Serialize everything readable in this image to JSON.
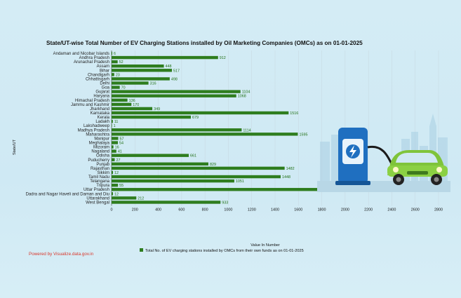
{
  "title": "State/UT-wise Total Number of EV Charging Stations installed by Oil Marketing Companies (OMCs) as on 01-01-2025",
  "powered_by": "Powered by Visualize.data.gov.in",
  "colors": {
    "bar": "#2e7d1e",
    "value_label": "#1f6f12",
    "powered": "#d9372c",
    "grid": "#c6d7df"
  },
  "chart_data": {
    "type": "bar",
    "orientation": "horizontal",
    "xlabel": "Value In Number",
    "ylabel": "State/UT",
    "xlim": [
      0,
      2800
    ],
    "x_ticks": [
      0,
      200,
      400,
      600,
      800,
      1000,
      1200,
      1400,
      1600,
      1800,
      2000,
      2200,
      2400,
      2600,
      2800
    ],
    "grid": true,
    "legend_position": "bottom-center",
    "categories": [
      "Andaman and Nicobar Islands",
      "Andhra Pradesh",
      "Arunachal Pradesh",
      "Assam",
      "Bihar",
      "Chandigarh",
      "Chhattisgarh",
      "Delhi",
      "Goa",
      "Gujarat",
      "Haryana",
      "Himachal Pradesh",
      "Jammu and Kashmir",
      "Jharkhand",
      "Karnataka",
      "Kerala",
      "Ladakh",
      "Lakshadweep",
      "Madhya Pradesh",
      "Maharashtra",
      "Manipur",
      "Meghalaya",
      "Mizoram",
      "Nagaland",
      "Odisha",
      "Puducherry",
      "Punjab",
      "Rajasthan",
      "Sikkim",
      "Tamil Nadu",
      "Telangana",
      "Tripura",
      "Uttar Pradesh",
      "Dadra and Nagar Haveli and Daman and Diu",
      "Uttarakhand",
      "West Bengal"
    ],
    "series": [
      {
        "name": "Total No. of EV charging stations installed by OMCs from their own funds as on 01-01-2025",
        "values": [
          6,
          912,
          52,
          448,
          517,
          23,
          498,
          316,
          70,
          1104,
          1068,
          136,
          170,
          349,
          1516,
          679,
          11,
          1,
          1114,
          1595,
          57,
          54,
          16,
          41,
          661,
          27,
          829,
          1482,
          12,
          1448,
          1051,
          55,
          2561,
          12,
          212,
          933
        ]
      }
    ]
  }
}
